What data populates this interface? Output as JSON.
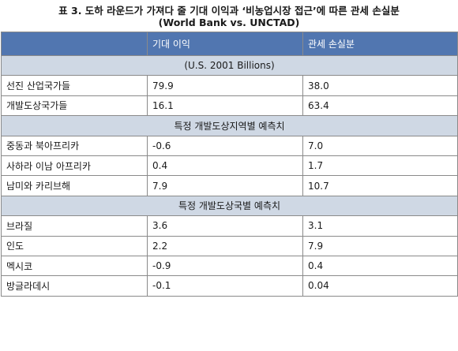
{
  "title": {
    "line1": "표 3. 도하 라운드가 가져다 줄 기대 이익과 ‘비농업시장 접근’에 따른 관세 손실분",
    "line2": "(World Bank vs. UNCTAD)"
  },
  "header": [
    "",
    "기대 이익",
    "관세 손실분"
  ],
  "units_row": "(U.S. 2001 Billions)",
  "groups": [
    {
      "rows": [
        {
          "name": "선진 산업국가들",
          "benefit": "79.9",
          "loss": "38.0"
        },
        {
          "name": "개발도상국가들",
          "benefit": "16.1",
          "loss": "63.4"
        }
      ]
    },
    {
      "section": "특정 개발도상지역별 예측치",
      "rows": [
        {
          "name": "중동과 북아프리카",
          "benefit": "-0.6",
          "loss": "7.0"
        },
        {
          "name": "사하라 이남 아프리카",
          "benefit": "0.4",
          "loss": "1.7"
        },
        {
          "name": "남미와 카리브해",
          "benefit": "7.9",
          "loss": "10.7"
        }
      ]
    },
    {
      "section": "특정 개발도상국별 예측치",
      "rows": [
        {
          "name": "브라질",
          "benefit": "3.6",
          "loss": "3.1"
        },
        {
          "name": "인도",
          "benefit": "2.2",
          "loss": "7.9"
        },
        {
          "name": "멕시코",
          "benefit": "-0.9",
          "loss": "0.4"
        },
        {
          "name": "방글라데시",
          "benefit": "-0.1",
          "loss": "0.04"
        }
      ]
    }
  ]
}
